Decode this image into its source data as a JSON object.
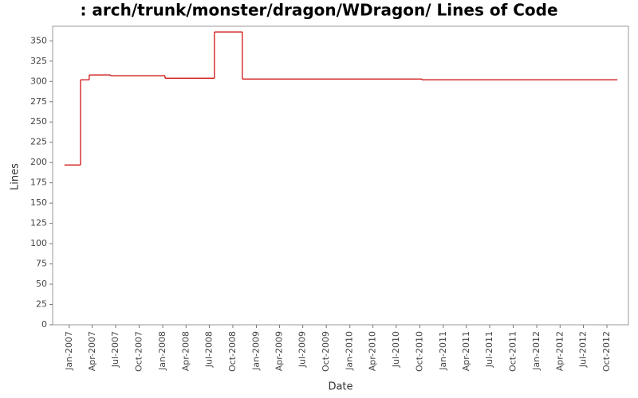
{
  "chart_data": {
    "type": "line",
    "step": true,
    "title": ": arch/trunk/monster/dragon/WDragon/ Lines of Code",
    "x_label": "Date",
    "y_label": "Lines",
    "x": [
      "2006-12-13",
      "2007-02-14",
      "2007-03-20",
      "2007-06-11",
      "2008-01-10",
      "2008-07-21",
      "2008-11-07",
      "2010-10-09",
      "2012-11-11"
    ],
    "series": [
      {
        "name": "Lines",
        "color": "#cc0000",
        "values": [
          197,
          302,
          308,
          307,
          304,
          361,
          303,
          302,
          302
        ]
      }
    ],
    "xlim": [
      "2006-10-28",
      "2012-12-24"
    ],
    "xticks": [
      {
        "value": "2007-01-01",
        "label": "Jan-2007"
      },
      {
        "value": "2007-04-01",
        "label": "Apr-2007"
      },
      {
        "value": "2007-07-01",
        "label": "Jul-2007"
      },
      {
        "value": "2007-10-01",
        "label": "Oct-2007"
      },
      {
        "value": "2008-01-01",
        "label": "Jan-2008"
      },
      {
        "value": "2008-04-01",
        "label": "Apr-2008"
      },
      {
        "value": "2008-07-01",
        "label": "Jul-2008"
      },
      {
        "value": "2008-10-01",
        "label": "Oct-2008"
      },
      {
        "value": "2009-01-01",
        "label": "Jan-2009"
      },
      {
        "value": "2009-04-01",
        "label": "Apr-2009"
      },
      {
        "value": "2009-07-01",
        "label": "Jul-2009"
      },
      {
        "value": "2009-10-01",
        "label": "Oct-2009"
      },
      {
        "value": "2010-01-01",
        "label": "Jan-2010"
      },
      {
        "value": "2010-04-01",
        "label": "Apr-2010"
      },
      {
        "value": "2010-07-01",
        "label": "Jul-2010"
      },
      {
        "value": "2010-10-01",
        "label": "Oct-2010"
      },
      {
        "value": "2011-01-01",
        "label": "Jan-2011"
      },
      {
        "value": "2011-04-01",
        "label": "Apr-2011"
      },
      {
        "value": "2011-07-01",
        "label": "Jul-2011"
      },
      {
        "value": "2011-10-01",
        "label": "Oct-2011"
      },
      {
        "value": "2012-01-01",
        "label": "Jan-2012"
      },
      {
        "value": "2012-04-01",
        "label": "Apr-2012"
      },
      {
        "value": "2012-07-01",
        "label": "Jul-2012"
      },
      {
        "value": "2012-10-01",
        "label": "Oct-2012"
      }
    ],
    "ylim": [
      0,
      368
    ],
    "yticks": [
      0,
      25,
      50,
      75,
      100,
      125,
      150,
      175,
      200,
      225,
      250,
      275,
      300,
      325,
      350
    ],
    "grid": false
  }
}
